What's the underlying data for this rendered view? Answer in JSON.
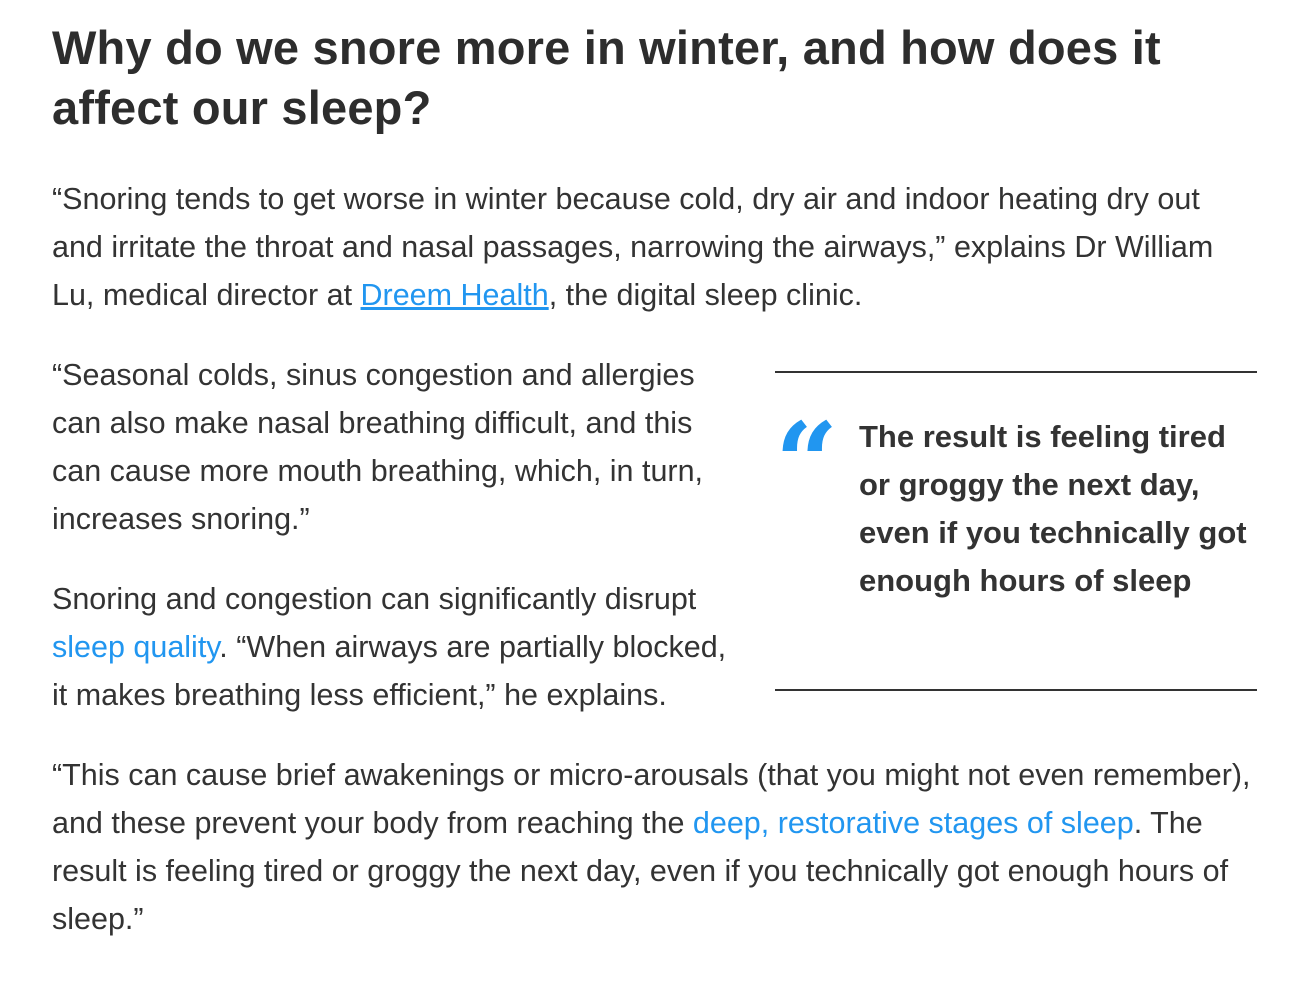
{
  "heading": "Why do we snore more in winter, and how does it affect our sleep?",
  "p1": {
    "before": "“Snoring tends to get worse in winter because cold, dry air and indoor heating dry out and irritate the throat and nasal passages, narrowing the airways,” explains Dr William Lu, medical director at ",
    "link": "Dreem Health",
    "after": ", the digital sleep clinic."
  },
  "p2": "“Seasonal colds, sinus congestion and allergies can also make nasal breathing difficult, and this can cause more mouth breathing, which, in turn, increases snoring.”",
  "p3": {
    "before": "Snoring and congestion can significantly disrupt ",
    "link": "sleep quality",
    "after": ". “When airways are partially blocked, it makes breathing less efficient,” he explains."
  },
  "pullquote": {
    "icon": "quote-open-icon",
    "glyph": "“",
    "text": "The result is feeling tired or groggy the next day, even if you technically got enough hours of sleep"
  },
  "p4": {
    "before": "“This can cause brief awakenings or micro-arousals (that you might not even remember), and these prevent your body from reaching the ",
    "link": "deep, restorative stages of sleep",
    "after": ". The result is feeling tired or groggy the next day, even if you technically got enough hours of sleep.”"
  },
  "colors": {
    "accent": "#2196f0",
    "text": "#333333"
  }
}
